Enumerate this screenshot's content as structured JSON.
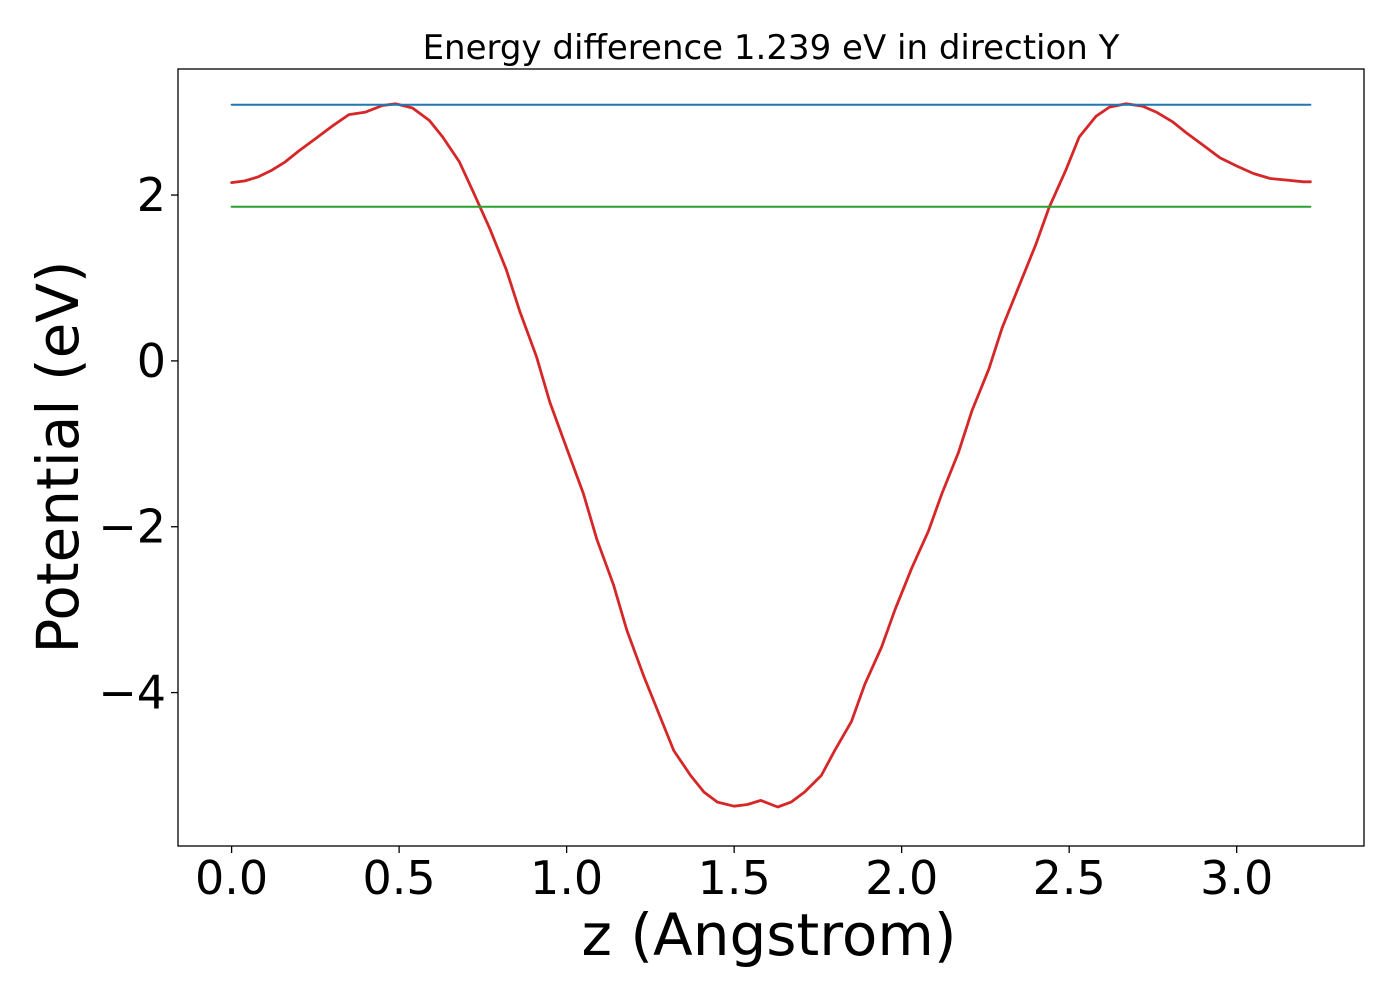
{
  "chart_data": {
    "type": "line",
    "title": "Energy difference 1.239 eV in direction Y",
    "xlabel": "z (Angstrom)",
    "ylabel": "Potential (eV)",
    "xlim": [
      -0.16,
      3.38
    ],
    "ylim": [
      -5.85,
      3.52
    ],
    "grid": false,
    "xticks": [
      0.0,
      0.5,
      1.0,
      1.5,
      2.0,
      2.5,
      3.0
    ],
    "xtick_labels": [
      "0.0",
      "0.5",
      "1.0",
      "1.5",
      "2.0",
      "2.5",
      "3.0"
    ],
    "yticks": [
      -4,
      -2,
      0,
      2
    ],
    "ytick_labels": [
      "−4",
      "−2",
      "0",
      "2"
    ],
    "series": [
      {
        "color": "#d62728",
        "style": "curve",
        "x": [
          0.0,
          0.04,
          0.08,
          0.12,
          0.16,
          0.2,
          0.25,
          0.3,
          0.35,
          0.4,
          0.45,
          0.49,
          0.54,
          0.59,
          0.63,
          0.68,
          0.72,
          0.77,
          0.82,
          0.86,
          0.91,
          0.95,
          1.0,
          1.05,
          1.09,
          1.14,
          1.18,
          1.23,
          1.28,
          1.32,
          1.37,
          1.41,
          1.45,
          1.5,
          1.54,
          1.58,
          1.63,
          1.67,
          1.71,
          1.76,
          1.8,
          1.85,
          1.89,
          1.94,
          1.98,
          2.03,
          2.08,
          2.12,
          2.17,
          2.21,
          2.26,
          2.3,
          2.35,
          2.4,
          2.44,
          2.49,
          2.53,
          2.58,
          2.62,
          2.67,
          2.72,
          2.76,
          2.81,
          2.85,
          2.9,
          2.95,
          3.0,
          3.05,
          3.1,
          3.15,
          3.2,
          3.22
        ],
        "y": [
          2.15,
          2.17,
          2.22,
          2.3,
          2.4,
          2.53,
          2.68,
          2.83,
          2.97,
          3.0,
          3.08,
          3.1,
          3.05,
          2.9,
          2.7,
          2.4,
          2.05,
          1.6,
          1.1,
          0.6,
          0.05,
          -0.5,
          -1.05,
          -1.6,
          -2.15,
          -2.7,
          -3.25,
          -3.8,
          -4.3,
          -4.7,
          -5.0,
          -5.2,
          -5.32,
          -5.37,
          -5.35,
          -5.3,
          -5.38,
          -5.32,
          -5.2,
          -5.0,
          -4.7,
          -4.35,
          -3.9,
          -3.45,
          -3.0,
          -2.5,
          -2.05,
          -1.6,
          -1.1,
          -0.6,
          -0.1,
          0.4,
          0.9,
          1.4,
          1.85,
          2.3,
          2.7,
          2.95,
          3.06,
          3.1,
          3.07,
          3.0,
          2.88,
          2.75,
          2.6,
          2.45,
          2.35,
          2.26,
          2.2,
          2.18,
          2.16,
          2.16
        ]
      },
      {
        "color": "#1f77b4",
        "style": "flat",
        "x": [
          0.0,
          3.22
        ],
        "y": [
          3.09,
          3.09
        ]
      },
      {
        "color": "#2ca02c",
        "style": "flat",
        "x": [
          0.0,
          3.22
        ],
        "y": [
          1.86,
          1.86
        ]
      }
    ]
  }
}
